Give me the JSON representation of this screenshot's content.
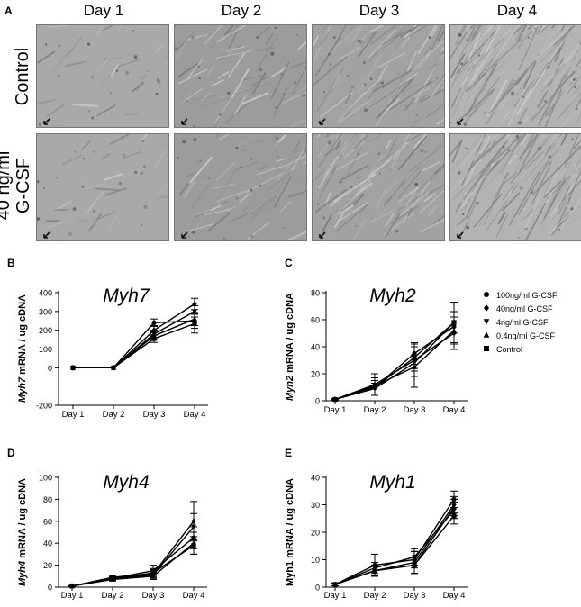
{
  "panelA": {
    "letter": "A",
    "days": [
      "Day 1",
      "Day 2",
      "Day 3",
      "Day 4"
    ],
    "rows": [
      "Control",
      "40 ng/ml\nG-CSF"
    ]
  },
  "legend": {
    "items": [
      {
        "label": "100ng/ml G-CSF",
        "marker": "circle"
      },
      {
        "label": "40ng/ml G-CSF",
        "marker": "diamond"
      },
      {
        "label": "4ng/ml G-CSF",
        "marker": "triangle-down"
      },
      {
        "label": "0.4ng/ml G-CSF",
        "marker": "triangle-up"
      },
      {
        "label": "Control",
        "marker": "square"
      }
    ]
  },
  "chart_data": [
    {
      "letter": "B",
      "type": "line",
      "title": "Myh7",
      "ylabel_gene": "Myh7",
      "ylabel_rest": " mRNA / ug cDNA",
      "categories": [
        "Day 1",
        "Day 2",
        "Day 3",
        "Day 4"
      ],
      "ylim": [
        -200,
        400
      ],
      "yticks": [
        -200,
        0,
        100,
        200,
        300,
        400
      ],
      "series": [
        {
          "marker": "circle",
          "values": [
            0,
            0,
            240,
            250
          ],
          "err": [
            0,
            0,
            20,
            40
          ]
        },
        {
          "marker": "diamond",
          "values": [
            0,
            0,
            200,
            340
          ],
          "err": [
            0,
            0,
            25,
            30
          ]
        },
        {
          "marker": "triangle-down",
          "values": [
            0,
            0,
            180,
            300
          ],
          "err": [
            0,
            0,
            20,
            30
          ]
        },
        {
          "marker": "triangle-up",
          "values": [
            0,
            0,
            170,
            260
          ],
          "err": [
            0,
            0,
            20,
            35
          ]
        },
        {
          "marker": "square",
          "values": [
            0,
            0,
            155,
            235
          ],
          "err": [
            0,
            0,
            20,
            50
          ]
        }
      ]
    },
    {
      "letter": "C",
      "type": "line",
      "title": "Myh2",
      "ylabel_gene": "Myh2",
      "ylabel_rest": " mRNA / ug cDNA",
      "categories": [
        "Day 1",
        "Day 2",
        "Day 3",
        "Day 4"
      ],
      "ylim": [
        0,
        80
      ],
      "yticks": [
        0,
        20,
        40,
        60,
        80
      ],
      "series": [
        {
          "marker": "circle",
          "values": [
            1,
            10,
            35,
            55
          ],
          "err": [
            0.5,
            5,
            8,
            10
          ]
        },
        {
          "marker": "diamond",
          "values": [
            1,
            12,
            30,
            50
          ],
          "err": [
            0.5,
            8,
            12,
            12
          ]
        },
        {
          "marker": "triangle-down",
          "values": [
            1,
            9,
            28,
            58
          ],
          "err": [
            0.5,
            4,
            6,
            15
          ]
        },
        {
          "marker": "triangle-up",
          "values": [
            1,
            11,
            25,
            52
          ],
          "err": [
            0.5,
            6,
            15,
            10
          ]
        },
        {
          "marker": "square",
          "values": [
            1,
            10,
            32,
            58
          ],
          "err": [
            0.5,
            5,
            8,
            8
          ]
        }
      ]
    },
    {
      "letter": "D",
      "type": "line",
      "title": "Myh4",
      "ylabel_gene": "Myh4",
      "ylabel_rest": " mRNA / ug cDNA",
      "categories": [
        "Day 1",
        "Day 2",
        "Day 3",
        "Day 4"
      ],
      "ylim": [
        0,
        100
      ],
      "yticks": [
        0,
        20,
        40,
        60,
        80,
        100
      ],
      "series": [
        {
          "marker": "circle",
          "values": [
            1,
            8,
            15,
            45
          ],
          "err": [
            0.5,
            1.5,
            5,
            10
          ]
        },
        {
          "marker": "diamond",
          "values": [
            1,
            9,
            12,
            60
          ],
          "err": [
            0.5,
            1.5,
            4,
            18
          ]
        },
        {
          "marker": "triangle-down",
          "values": [
            1,
            8,
            11,
            55
          ],
          "err": [
            0.5,
            1.5,
            4,
            12
          ]
        },
        {
          "marker": "triangle-up",
          "values": [
            1,
            7,
            10,
            40
          ],
          "err": [
            0.5,
            1.5,
            3,
            10
          ]
        },
        {
          "marker": "square",
          "values": [
            1,
            8,
            13,
            38
          ],
          "err": [
            0.5,
            1.5,
            4,
            8
          ]
        }
      ]
    },
    {
      "letter": "E",
      "type": "line",
      "title": "Myh1",
      "ylabel_gene": "Myh1",
      "ylabel_rest": " mRNA / ug cDNA",
      "ylabel_gene_italic": false,
      "categories": [
        "Day 1",
        "Day 2",
        "Day 3",
        "Day 4"
      ],
      "ylim": [
        0,
        40
      ],
      "yticks": [
        0,
        10,
        20,
        30,
        40
      ],
      "series": [
        {
          "marker": "circle",
          "values": [
            1,
            8,
            10,
            32
          ],
          "err": [
            0.5,
            4,
            3,
            3
          ]
        },
        {
          "marker": "diamond",
          "values": [
            1,
            6,
            9,
            30
          ],
          "err": [
            0.5,
            2,
            4,
            3
          ]
        },
        {
          "marker": "triangle-down",
          "values": [
            1,
            7,
            11,
            28
          ],
          "err": [
            0.5,
            2,
            3,
            3
          ]
        },
        {
          "marker": "triangle-up",
          "values": [
            1,
            6,
            8,
            29
          ],
          "err": [
            0.5,
            2,
            3,
            3
          ]
        },
        {
          "marker": "square",
          "values": [
            1,
            6,
            8,
            26
          ],
          "err": [
            0.5,
            2,
            3,
            3
          ]
        }
      ]
    }
  ]
}
